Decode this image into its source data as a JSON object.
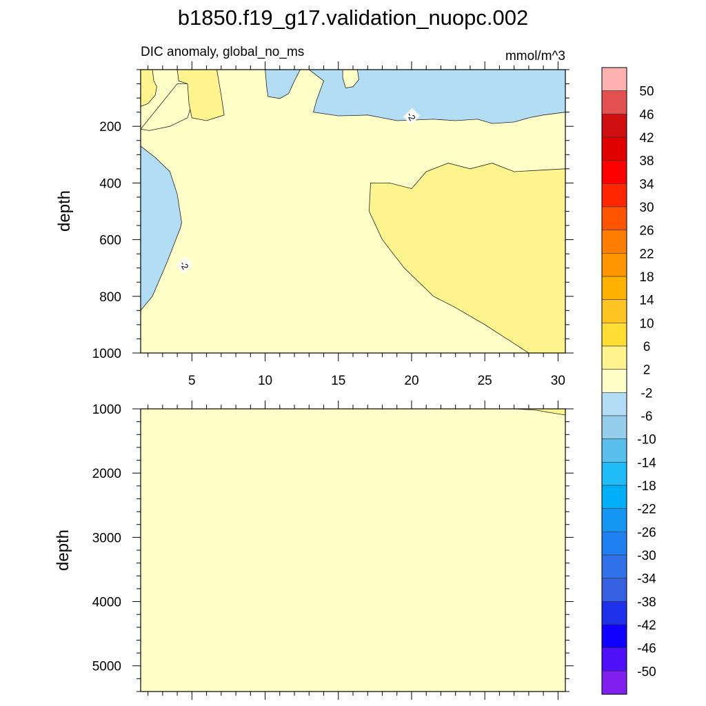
{
  "chart_data": {
    "type": "heatmap",
    "title": "b1850.f19_g17.validation_nuopc.002",
    "panels": [
      {
        "name": "upper",
        "left_subtitle": "DIC anomaly, global_no_ms",
        "right_subtitle": "mmol/m^3",
        "ylabel": "depth",
        "xlim": [
          1.5,
          30.5
        ],
        "ylim": [
          0,
          1000
        ],
        "x_ticks": [
          "5",
          "10",
          "15",
          "20",
          "25",
          "30"
        ],
        "y_ticks": [
          "200",
          "400",
          "600",
          "800",
          "1000"
        ],
        "background_interval": "-2 to 2",
        "regions": [
          {
            "interval": "2 to 6",
            "vertices": [
              [
                1.5,
                0
              ],
              [
                2.3,
                0
              ],
              [
                2.4,
                40
              ],
              [
                2.6,
                60
              ],
              [
                2.5,
                90
              ],
              [
                2.0,
                120
              ],
              [
                1.5,
                130
              ]
            ]
          },
          {
            "interval": "-2 to 2",
            "vertices": [
              [
                4.0,
                50
              ],
              [
                4.9,
                50
              ],
              [
                5.0,
                120
              ],
              [
                4.7,
                170
              ],
              [
                3.5,
                200
              ],
              [
                2.1,
                215
              ],
              [
                1.5,
                210
              ]
            ]
          },
          {
            "interval": "2 to 6",
            "vertices": [
              [
                4.0,
                0
              ],
              [
                6.7,
                0
              ],
              [
                7.0,
                90
              ],
              [
                7.2,
                160
              ],
              [
                6.0,
                180
              ],
              [
                5.0,
                170
              ],
              [
                4.8,
                120
              ],
              [
                4.7,
                50
              ],
              [
                4.1,
                40
              ]
            ]
          },
          {
            "interval": "-6 to -2",
            "vertices": [
              [
                10.0,
                0
              ],
              [
                12.4,
                0
              ],
              [
                12.0,
                40
              ],
              [
                11.6,
                85
              ],
              [
                11.0,
                102
              ],
              [
                10.2,
                95
              ],
              [
                10.1,
                60
              ]
            ]
          },
          {
            "interval": "-6 to -2",
            "vertices": [
              [
                13.0,
                0
              ],
              [
                30.5,
                0
              ],
              [
                30.5,
                150
              ],
              [
                29.0,
                160
              ],
              [
                28.0,
                170
              ],
              [
                27.0,
                185
              ],
              [
                25.5,
                190
              ],
              [
                24.5,
                175
              ],
              [
                23.0,
                180
              ],
              [
                21.5,
                175
              ],
              [
                19.0,
                180
              ],
              [
                18.0,
                170
              ],
              [
                17.0,
                160
              ],
              [
                16.0,
                162
              ],
              [
                15.0,
                163
              ],
              [
                13.3,
                150
              ],
              [
                13.5,
                110
              ],
              [
                14.0,
                40
              ]
            ]
          },
          {
            "interval": "-2 to 2",
            "vertices": [
              [
                15.3,
                0
              ],
              [
                16.3,
                0
              ],
              [
                16.4,
                35
              ],
              [
                16.0,
                60
              ],
              [
                15.5,
                65
              ],
              [
                15.3,
                30
              ]
            ]
          },
          {
            "interval": "-6 to -2",
            "vertices": [
              [
                1.5,
                270
              ],
              [
                2.5,
                310
              ],
              [
                3.5,
                360
              ],
              [
                4.0,
                440
              ],
              [
                4.3,
                540
              ],
              [
                4.2,
                560
              ],
              [
                3.3,
                680
              ],
              [
                2.3,
                800
              ],
              [
                1.5,
                850
              ]
            ]
          },
          {
            "interval": "2 to 6",
            "vertices": [
              [
                17.2,
                400
              ],
              [
                18.5,
                400
              ],
              [
                20.0,
                420
              ],
              [
                21.0,
                360
              ],
              [
                22.5,
                330
              ],
              [
                24.0,
                350
              ],
              [
                25.5,
                330
              ],
              [
                27.0,
                360
              ],
              [
                30.5,
                350
              ],
              [
                30.5,
                1000
              ],
              [
                28.0,
                1000
              ],
              [
                26.5,
                950
              ],
              [
                25.0,
                900
              ],
              [
                23.0,
                840
              ],
              [
                21.5,
                800
              ],
              [
                19.5,
                700
              ],
              [
                18.0,
                600
              ],
              [
                17.1,
                500
              ]
            ]
          }
        ],
        "contour_labels": [
          {
            "text": "-2",
            "x": 4.5,
            "y": 690
          },
          {
            "text": "-2",
            "x": 20.0,
            "y": 165
          }
        ]
      },
      {
        "name": "lower",
        "ylabel": "depth",
        "xlim": [
          1.5,
          30.5
        ],
        "ylim": [
          1000,
          5400
        ],
        "x_ticks": [
          "5",
          "10",
          "15",
          "20",
          "25",
          "30"
        ],
        "y_ticks": [
          "1000",
          "2000",
          "3000",
          "4000",
          "5000"
        ],
        "background_interval": "-2 to 2",
        "regions": [
          {
            "interval": "2 to 6",
            "vertices": [
              [
                27.0,
                1000
              ],
              [
                30.5,
                1000
              ],
              [
                30.5,
                1095
              ],
              [
                29.5,
                1060
              ],
              [
                28.5,
                1020
              ]
            ]
          }
        ],
        "contour_labels": []
      }
    ],
    "colorbar": {
      "levels": [
        "50",
        "46",
        "42",
        "38",
        "34",
        "30",
        "26",
        "22",
        "18",
        "14",
        "10",
        "6",
        "2",
        "-2",
        "-6",
        "-10",
        "-14",
        "-18",
        "-22",
        "-26",
        "-30",
        "-34",
        "-38",
        "-42",
        "-46",
        "-50"
      ],
      "colors": [
        "#fdb1b1",
        "#e35050",
        "#d01010",
        "#e00000",
        "#ff0000",
        "#ff2600",
        "#ff5500",
        "#ff7d00",
        "#ff9600",
        "#ffb100",
        "#ffc422",
        "#ffdd33",
        "#fff48d",
        "#ffffc8",
        "#b3ddf4",
        "#95cdec",
        "#59bfed",
        "#1fbcf8",
        "#00aff8",
        "#1496f3",
        "#2080f1",
        "#3070e9",
        "#3560e2",
        "#1f30ea",
        "#1000ff",
        "#4e10f6",
        "#8020ee"
      ],
      "interval_colors": {
        "2 to 6": "#fff48d",
        "-2 to 2": "#ffffc8",
        "-6 to -2": "#b3ddf4"
      }
    }
  }
}
